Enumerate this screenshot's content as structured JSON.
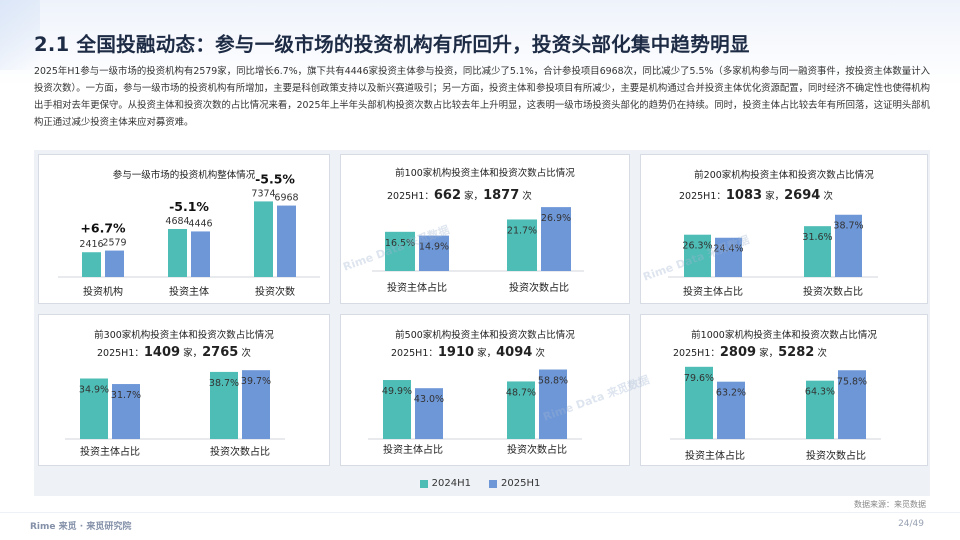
{
  "title": "2.1 全国投融动态：参与一级市场的投资机构有所回升，投资头部化集中趋势明显",
  "intro": "2025年H1参与一级市场的投资机构有2579家，同比增长6.7%，旗下共有4446家投资主体参与投资，同比减少了5.1%，合计参投项目6968次，同比减少了5.5%（多家机构参与同一融资事件，按投资主体数量计入投资次数）。一方面，参与一级市场的投资机构有所增加，主要是科创政策支持以及新兴赛道吸引；另一方面，投资主体和参投项目有所减少，主要是机构通过合并投资主体优化资源配置，同时经济不确定性也使得机构出手相对去年更保守。从投资主体和投资次数的占比情况来看，2025年上半年头部机构投资次数占比较去年上升明显，这表明一级市场投资头部化的趋势仍在持续。同时，投资主体占比较去年有所回落，这证明头部机构正通过减少投资主体来应对募资难。",
  "legend": {
    "s1": "2024H1",
    "s2": "2025H1"
  },
  "colors": {
    "s1": "#4dbdb5",
    "s2": "#6e97d8"
  },
  "source": "数据来源：来觅数据",
  "footer": {
    "logo": "Rime 来觅 · 来觅研究院",
    "page": "24/49"
  },
  "watermark": "Rime Data 来觅数据",
  "chart_data": [
    {
      "id": "overall",
      "type": "bar",
      "title": "参与一级市场的投资机构整体情况",
      "categories": [
        "投资机构",
        "投资主体",
        "投资次数"
      ],
      "series": [
        {
          "name": "2024H1",
          "values": [
            2416,
            4684,
            7374
          ]
        },
        {
          "name": "2025H1",
          "values": [
            2579,
            4446,
            6968
          ]
        }
      ],
      "annotations": [
        "+6.7%",
        "-5.1%",
        "-5.5%"
      ],
      "ymax": 8000
    },
    {
      "id": "top100",
      "type": "bar",
      "title": "前100家机构投资主体和投资次数占比情况",
      "sub_prefix": "2025H1：",
      "count_institutions": "662",
      "unit_inst": "家，",
      "count_investments": "1877",
      "unit_times": "次",
      "categories": [
        "投资主体占比",
        "投资次数占比"
      ],
      "series": [
        {
          "name": "2024H1",
          "values": [
            16.5,
            21.7
          ]
        },
        {
          "name": "2025H1",
          "values": [
            14.9,
            26.9
          ]
        }
      ],
      "value_suffix": "%",
      "ymax": 32
    },
    {
      "id": "top200",
      "type": "bar",
      "title": "前200家机构投资主体和投资次数占比情况",
      "sub_prefix": "2025H1：",
      "count_institutions": "1083",
      "unit_inst": "家，",
      "count_investments": "2694",
      "unit_times": "次",
      "categories": [
        "投资主体占比",
        "投资次数占比"
      ],
      "series": [
        {
          "name": "2024H1",
          "values": [
            26.3,
            31.6
          ]
        },
        {
          "name": "2025H1",
          "values": [
            24.4,
            38.7
          ]
        }
      ],
      "value_suffix": "%",
      "ymax": 46
    },
    {
      "id": "top300",
      "type": "bar",
      "title": "前300家机构投资主体和投资次数占比情况",
      "sub_prefix": "2025H1：",
      "count_institutions": "1409",
      "unit_inst": "家，",
      "count_investments": "2765",
      "unit_times": "次",
      "categories": [
        "投资主体占比",
        "投资次数占比"
      ],
      "series": [
        {
          "name": "2024H1",
          "values": [
            34.9,
            38.7
          ]
        },
        {
          "name": "2025H1",
          "values": [
            31.7,
            39.7
          ]
        }
      ],
      "value_suffix": "%",
      "ymax": 45
    },
    {
      "id": "top500",
      "type": "bar",
      "title": "前500家机构投资主体和投资次数占比情况",
      "sub_prefix": "2025H1：",
      "count_institutions": "1910",
      "unit_inst": "家，",
      "count_investments": "4094",
      "unit_times": "次",
      "categories": [
        "投资主体占比",
        "投资次数占比"
      ],
      "series": [
        {
          "name": "2024H1",
          "values": [
            49.9,
            48.7
          ]
        },
        {
          "name": "2025H1",
          "values": [
            43.0,
            58.8
          ]
        }
      ],
      "value_suffix": "%",
      "ymax": 66
    },
    {
      "id": "top1000",
      "type": "bar",
      "title": "前1000家机构投资主体和投资次数占比情况",
      "sub_prefix": "2025H1：",
      "count_institutions": "2809",
      "unit_inst": "家，",
      "count_investments": "5282",
      "unit_times": "次",
      "categories": [
        "投资主体占比",
        "投资次数占比"
      ],
      "series": [
        {
          "name": "2024H1",
          "values": [
            79.6,
            64.3
          ]
        },
        {
          "name": "2025H1",
          "values": [
            63.2,
            75.8
          ]
        }
      ],
      "value_suffix": "%",
      "ymax": 86
    }
  ]
}
